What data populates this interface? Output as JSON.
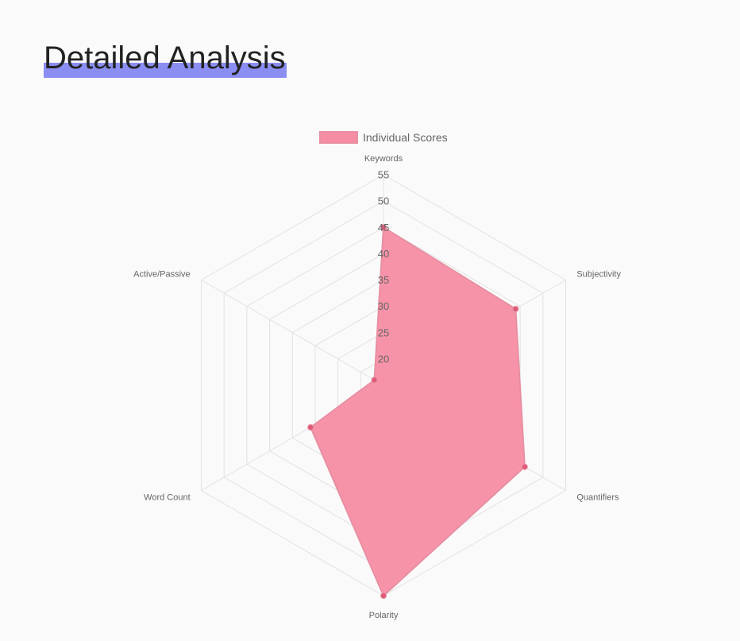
{
  "page": {
    "heading": "Detailed Analysis"
  },
  "chart_data": {
    "type": "radar",
    "categories": [
      "Keywords",
      "Subjectivity",
      "Quantifiers",
      "Polarity",
      "Word Count",
      "Active/Passive"
    ],
    "series": [
      {
        "name": "Individual Scores",
        "values": [
          45,
          44,
          46,
          55,
          31,
          17
        ],
        "color": "#f78da4",
        "border_color": "#e78fa2",
        "point_color": "#e05a78"
      }
    ],
    "r_ticks": [
      "20",
      "25",
      "30",
      "35",
      "40",
      "45",
      "50",
      "55"
    ],
    "r_min": 15,
    "r_max": 55,
    "grid": true,
    "legend": "top"
  }
}
